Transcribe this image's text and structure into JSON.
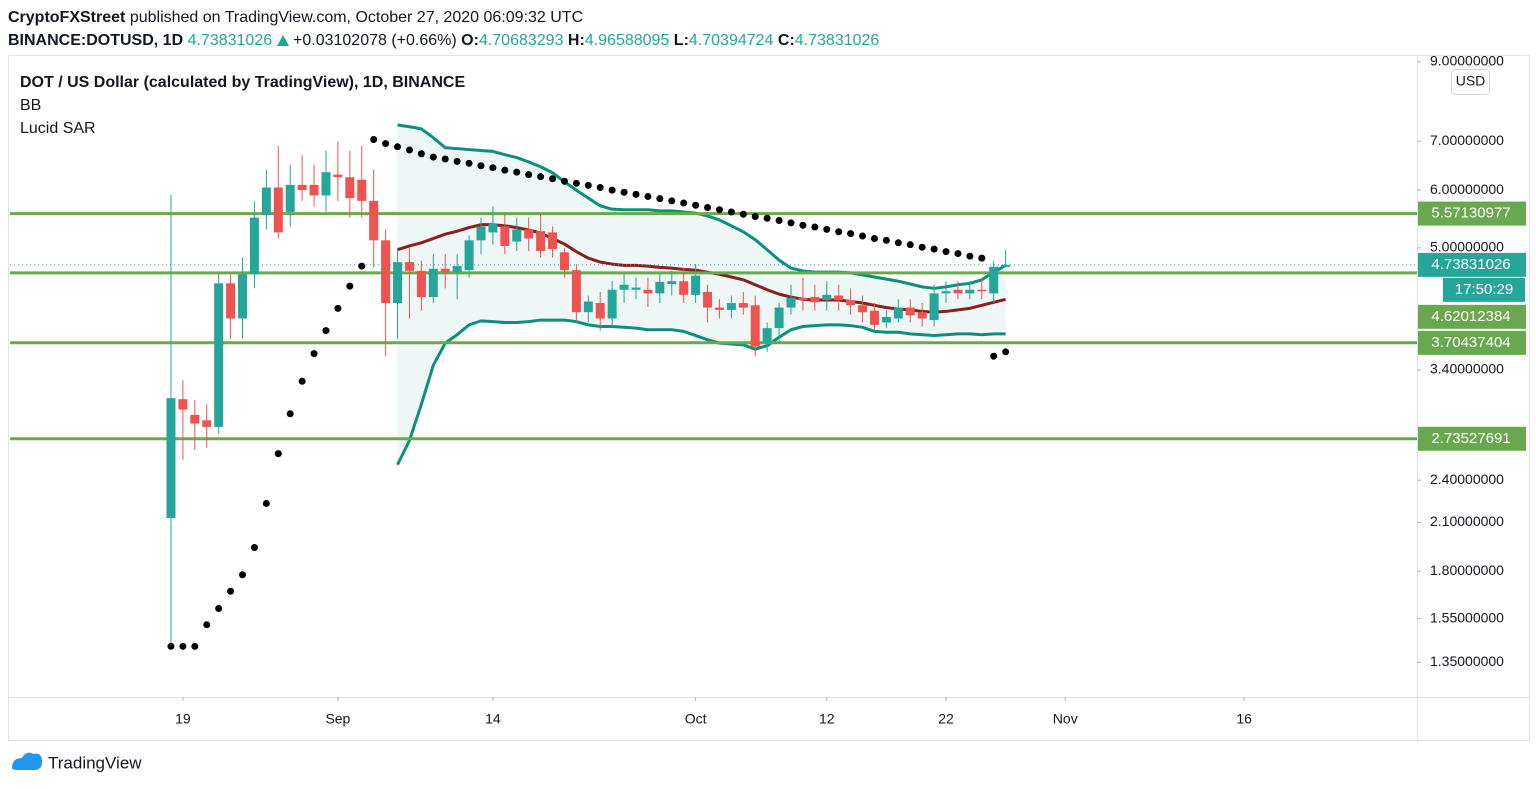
{
  "header": {
    "publisher": "CryptoFXStreet",
    "published": "published on TradingView.com, October 27, 2020 06:09:32 UTC",
    "symbol": "BINANCE:DOTUSD, 1D",
    "change": "+0.03102078 (+0.66%)",
    "o_label": "O:",
    "h_label": "H:",
    "l_label": "L:",
    "c_label": "C:"
  },
  "logo": "TradingView",
  "chart_data": {
    "type": "candlestick",
    "title": "DOT / US Dollar (calculated by TradingView), 1D, BINANCE",
    "currency": "USD",
    "countdown": "17:50:29",
    "up_color": "#26a69a",
    "down_color": "#ef5350",
    "log_scale": true,
    "x": [
      "2020-08-18",
      "2020-08-19",
      "2020-08-20",
      "2020-08-21",
      "2020-08-22",
      "2020-08-23",
      "2020-08-24",
      "2020-08-25",
      "2020-08-26",
      "2020-08-27",
      "2020-08-28",
      "2020-08-29",
      "2020-08-30",
      "2020-08-31",
      "2020-09-01",
      "2020-09-02",
      "2020-09-03",
      "2020-09-04",
      "2020-09-05",
      "2020-09-06",
      "2020-09-07",
      "2020-09-08",
      "2020-09-09",
      "2020-09-10",
      "2020-09-11",
      "2020-09-12",
      "2020-09-13",
      "2020-09-14",
      "2020-09-15",
      "2020-09-16",
      "2020-09-17",
      "2020-09-18",
      "2020-09-19",
      "2020-09-20",
      "2020-09-21",
      "2020-09-22",
      "2020-09-23",
      "2020-09-24",
      "2020-09-25",
      "2020-09-26",
      "2020-09-27",
      "2020-09-28",
      "2020-09-29",
      "2020-09-30",
      "2020-10-01",
      "2020-10-02",
      "2020-10-03",
      "2020-10-04",
      "2020-10-05",
      "2020-10-06",
      "2020-10-07",
      "2020-10-08",
      "2020-10-09",
      "2020-10-10",
      "2020-10-11",
      "2020-10-12",
      "2020-10-13",
      "2020-10-14",
      "2020-10-15",
      "2020-10-16",
      "2020-10-17",
      "2020-10-18",
      "2020-10-19",
      "2020-10-20",
      "2020-10-21",
      "2020-10-22",
      "2020-10-23",
      "2020-10-24",
      "2020-10-25",
      "2020-10-26",
      "2020-10-27"
    ],
    "candles": [
      [
        2.13,
        5.91,
        1.42,
        3.11
      ],
      [
        3.1,
        3.29,
        2.56,
        3.0
      ],
      [
        2.95,
        3.09,
        2.64,
        2.87
      ],
      [
        2.9,
        3.05,
        2.66,
        2.84
      ],
      [
        2.84,
        4.6,
        2.78,
        4.47
      ],
      [
        4.47,
        4.6,
        3.75,
        4.0
      ],
      [
        4.0,
        4.85,
        3.75,
        4.6
      ],
      [
        4.6,
        5.8,
        4.4,
        5.5
      ],
      [
        5.55,
        6.4,
        5.3,
        6.05
      ],
      [
        6.05,
        6.9,
        5.15,
        5.25
      ],
      [
        5.6,
        6.5,
        5.35,
        6.1
      ],
      [
        6.1,
        6.7,
        5.8,
        6.0
      ],
      [
        6.1,
        6.5,
        5.7,
        5.9
      ],
      [
        5.9,
        6.8,
        5.6,
        6.35
      ],
      [
        6.3,
        7.0,
        5.8,
        6.25
      ],
      [
        6.25,
        6.8,
        5.5,
        5.85
      ],
      [
        6.2,
        6.9,
        5.5,
        5.8
      ],
      [
        5.8,
        6.4,
        4.7,
        5.12
      ],
      [
        5.12,
        5.3,
        3.55,
        4.2
      ],
      [
        4.2,
        5.0,
        3.75,
        4.78
      ],
      [
        4.78,
        5.0,
        4.0,
        4.65
      ],
      [
        4.65,
        4.8,
        4.1,
        4.28
      ],
      [
        4.28,
        4.9,
        4.2,
        4.68
      ],
      [
        4.68,
        4.9,
        4.4,
        4.63
      ],
      [
        4.63,
        4.9,
        4.25,
        4.72
      ],
      [
        4.66,
        5.2,
        4.55,
        5.12
      ],
      [
        5.12,
        5.5,
        4.9,
        5.35
      ],
      [
        5.25,
        5.7,
        5.05,
        5.4
      ],
      [
        5.35,
        5.55,
        4.9,
        5.03
      ],
      [
        5.1,
        5.5,
        4.95,
        5.3
      ],
      [
        5.3,
        5.5,
        4.95,
        5.15
      ],
      [
        5.27,
        5.55,
        4.85,
        4.95
      ],
      [
        5.25,
        5.35,
        4.85,
        4.98
      ],
      [
        4.93,
        5.0,
        4.55,
        4.66
      ],
      [
        4.66,
        4.75,
        3.95,
        4.08
      ],
      [
        4.08,
        4.3,
        3.95,
        4.22
      ],
      [
        4.2,
        4.35,
        3.85,
        4.0
      ],
      [
        4.0,
        4.5,
        3.9,
        4.38
      ],
      [
        4.38,
        4.6,
        4.2,
        4.45
      ],
      [
        4.38,
        4.55,
        4.25,
        4.41
      ],
      [
        4.38,
        4.55,
        4.15,
        4.33
      ],
      [
        4.33,
        4.6,
        4.2,
        4.49
      ],
      [
        4.46,
        4.65,
        4.3,
        4.5
      ],
      [
        4.5,
        4.7,
        4.2,
        4.31
      ],
      [
        4.31,
        4.75,
        4.2,
        4.58
      ],
      [
        4.35,
        4.45,
        3.95,
        4.14
      ],
      [
        4.14,
        4.25,
        4.0,
        4.11
      ],
      [
        4.11,
        4.3,
        4.0,
        4.2
      ],
      [
        4.2,
        4.35,
        4.05,
        4.14
      ],
      [
        4.17,
        4.3,
        3.55,
        3.66
      ],
      [
        3.7,
        3.95,
        3.6,
        3.88
      ],
      [
        3.88,
        4.2,
        3.7,
        4.14
      ],
      [
        4.14,
        4.45,
        4.05,
        4.27
      ],
      [
        4.27,
        4.55,
        4.1,
        4.24
      ],
      [
        4.28,
        4.45,
        4.1,
        4.21
      ],
      [
        4.24,
        4.5,
        4.1,
        4.31
      ],
      [
        4.3,
        4.45,
        4.1,
        4.24
      ],
      [
        4.24,
        4.4,
        4.05,
        4.17
      ],
      [
        4.17,
        4.3,
        3.95,
        4.08
      ],
      [
        4.1,
        4.2,
        3.85,
        3.92
      ],
      [
        3.95,
        4.1,
        3.88,
        4.02
      ],
      [
        4.0,
        4.25,
        3.95,
        4.14
      ],
      [
        4.14,
        4.25,
        3.95,
        4.04
      ],
      [
        4.08,
        4.2,
        3.9,
        4.0
      ],
      [
        3.98,
        4.45,
        3.9,
        4.33
      ],
      [
        4.33,
        4.5,
        4.2,
        4.36
      ],
      [
        4.38,
        4.5,
        4.25,
        4.33
      ],
      [
        4.33,
        4.5,
        4.25,
        4.38
      ],
      [
        4.38,
        4.55,
        4.25,
        4.36
      ],
      [
        4.33,
        4.8,
        4.2,
        4.71
      ],
      [
        4.70683293,
        4.96588095,
        4.70394724,
        4.73831026
      ]
    ],
    "indicators": [
      {
        "name": "BB",
        "band_color": "#0e8f7e",
        "basis_color": "#8b1e1e",
        "fill": "#eef7f5",
        "upper": [
          null,
          null,
          null,
          null,
          null,
          null,
          null,
          null,
          null,
          null,
          null,
          null,
          null,
          null,
          null,
          null,
          null,
          null,
          null,
          7.37,
          7.33,
          7.28,
          7.08,
          6.86,
          6.84,
          6.82,
          6.8,
          6.78,
          6.71,
          6.65,
          6.56,
          6.46,
          6.34,
          6.16,
          6.0,
          5.85,
          5.71,
          5.65,
          5.64,
          5.64,
          5.64,
          5.62,
          5.62,
          5.6,
          5.58,
          5.53,
          5.46,
          5.36,
          5.26,
          5.13,
          4.97,
          4.81,
          4.69,
          4.65,
          4.63,
          4.63,
          4.63,
          4.62,
          4.59,
          4.56,
          4.53,
          4.5,
          4.46,
          4.42,
          4.4,
          4.42,
          4.45,
          4.47,
          4.52,
          4.63,
          4.73
        ],
        "basis": [
          null,
          null,
          null,
          null,
          null,
          null,
          null,
          null,
          null,
          null,
          null,
          null,
          null,
          null,
          null,
          null,
          null,
          null,
          null,
          4.97,
          5.03,
          5.08,
          5.15,
          5.22,
          5.27,
          5.33,
          5.38,
          5.38,
          5.36,
          5.33,
          5.29,
          5.24,
          5.15,
          5.06,
          4.94,
          4.84,
          4.78,
          4.75,
          4.73,
          4.73,
          4.72,
          4.7,
          4.69,
          4.67,
          4.66,
          4.63,
          4.6,
          4.56,
          4.52,
          4.45,
          4.38,
          4.32,
          4.28,
          4.25,
          4.24,
          4.24,
          4.24,
          4.22,
          4.2,
          4.17,
          4.14,
          4.12,
          4.11,
          4.09,
          4.08,
          4.09,
          4.11,
          4.13,
          4.17,
          4.21,
          4.25
        ],
        "lower": [
          null,
          null,
          null,
          null,
          null,
          null,
          null,
          null,
          null,
          null,
          null,
          null,
          null,
          null,
          null,
          null,
          null,
          null,
          null,
          2.52,
          2.72,
          3.05,
          3.45,
          3.7,
          3.8,
          3.92,
          3.97,
          3.96,
          3.95,
          3.95,
          3.96,
          3.98,
          3.98,
          3.98,
          3.96,
          3.92,
          3.9,
          3.9,
          3.89,
          3.88,
          3.86,
          3.86,
          3.86,
          3.84,
          3.79,
          3.74,
          3.7,
          3.69,
          3.68,
          3.63,
          3.67,
          3.77,
          3.86,
          3.9,
          3.91,
          3.92,
          3.92,
          3.91,
          3.89,
          3.84,
          3.83,
          3.83,
          3.81,
          3.8,
          3.79,
          3.8,
          3.81,
          3.81,
          3.8,
          3.81,
          3.81
        ]
      },
      {
        "name": "Lucid SAR",
        "color": "#000000",
        "values": [
          1.42,
          1.42,
          1.42,
          1.52,
          1.6,
          1.69,
          1.78,
          1.94,
          2.23,
          2.61,
          2.96,
          3.28,
          3.58,
          3.85,
          4.13,
          4.43,
          4.72,
          7.04,
          6.95,
          6.88,
          6.81,
          6.73,
          6.66,
          6.62,
          6.57,
          6.53,
          6.48,
          6.44,
          6.39,
          6.35,
          6.3,
          6.26,
          6.22,
          6.17,
          6.13,
          6.09,
          6.05,
          6.0,
          5.96,
          5.92,
          5.88,
          5.84,
          5.8,
          5.76,
          5.72,
          5.68,
          5.64,
          5.6,
          5.56,
          5.52,
          5.49,
          5.45,
          5.41,
          5.37,
          5.34,
          5.3,
          5.26,
          5.23,
          5.19,
          5.15,
          5.12,
          5.08,
          5.05,
          5.01,
          4.98,
          4.94,
          4.91,
          4.87,
          4.84,
          3.55,
          3.6
        ]
      }
    ],
    "hlines": [
      {
        "value": 5.57130977,
        "color": "#6aa84f"
      },
      {
        "value": 4.62012384,
        "color": "#6aa84f"
      },
      {
        "value": 3.70437404,
        "color": "#6aa84f"
      },
      {
        "value": 2.73527691,
        "color": "#6aa84f"
      }
    ],
    "xlim": [
      "2020-08-05",
      "2020-12-01"
    ],
    "xticks": [
      {
        "value": "2020-08-19",
        "label": "19"
      },
      {
        "value": "2020-09-01",
        "label": "Sep"
      },
      {
        "value": "2020-09-14",
        "label": "14"
      },
      {
        "value": "2020-10-01",
        "label": "Oct"
      },
      {
        "value": "2020-10-12",
        "label": "12"
      },
      {
        "value": "2020-10-22",
        "label": "22"
      },
      {
        "value": "2020-11-01",
        "label": "Nov"
      },
      {
        "value": "2020-11-16",
        "label": "16"
      }
    ],
    "ylim": [
      1.21,
      9.05
    ],
    "yticks": [
      {
        "value": 9,
        "label": "9.00000000"
      },
      {
        "value": 7,
        "label": "7.00000000"
      },
      {
        "value": 6,
        "label": "6.00000000"
      },
      {
        "value": 5,
        "label": "5.00000000"
      },
      {
        "value": 3.4,
        "label": "3.40000000"
      },
      {
        "value": 2.4,
        "label": "2.40000000"
      },
      {
        "value": 2.1,
        "label": "2.10000000"
      },
      {
        "value": 1.8,
        "label": "1.80000000"
      },
      {
        "value": 1.55,
        "label": "1.55000000"
      },
      {
        "value": 1.35,
        "label": "1.35000000"
      }
    ]
  }
}
